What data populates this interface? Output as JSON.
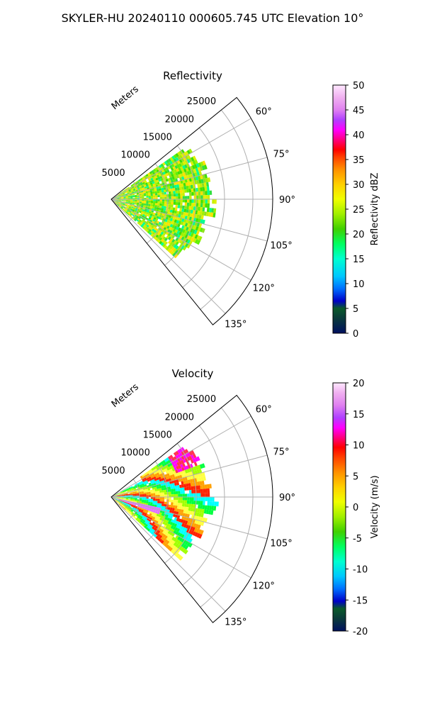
{
  "title": "SKYLER-HU  20240110  000605.745 UTC Elevation 10°",
  "chart_data": [
    {
      "type": "heatmap",
      "subtype": "polar-sector",
      "title": "Reflectivity",
      "range_label": "Meters",
      "range_ticks": [
        5000,
        10000,
        15000,
        20000,
        25000
      ],
      "range_max": 28500,
      "theta_ticks": [
        60,
        75,
        90,
        105,
        120,
        135
      ],
      "theta_min": 51,
      "theta_max": 141,
      "grid": true,
      "data_range_max": 18000,
      "colorbar": {
        "label": "Reflectivity dBZ",
        "min": 0,
        "max": 50,
        "ticks": [
          0,
          5,
          10,
          15,
          20,
          25,
          30,
          35,
          40,
          45,
          50
        ]
      },
      "field_summary": "Mostly 15-25 dBZ echoes out to ~18 km between 55° and 130° azimuth"
    },
    {
      "type": "heatmap",
      "subtype": "polar-sector",
      "title": "Velocity",
      "range_label": "Meters",
      "range_ticks": [
        5000,
        10000,
        15000,
        20000,
        25000
      ],
      "range_max": 28500,
      "theta_ticks": [
        60,
        75,
        90,
        105,
        120,
        135
      ],
      "theta_min": 51,
      "theta_max": 141,
      "grid": true,
      "data_range_max": 18000,
      "colorbar": {
        "label": "Velocity (m/s)",
        "min": -20,
        "max": 20,
        "ticks": [
          -20,
          -15,
          -10,
          -5,
          0,
          5,
          10,
          15,
          20
        ]
      },
      "field_summary": "Folded radial velocity bands from -20 to 20 m/s"
    }
  ]
}
